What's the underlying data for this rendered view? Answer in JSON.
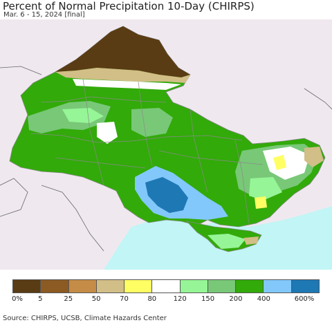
{
  "title": "Percent of Normal Precipitation 10-Day (CHIRPS)",
  "subtitle": "Mar. 6 - 15, 2024 [final]",
  "source": "Source: CHIRPS, UCSB, Climate Hazards Center",
  "legend": {
    "colors": [
      "#5a3c14",
      "#8c5a23",
      "#c48c46",
      "#d2be87",
      "#ffff64",
      "#ffffff",
      "#96f596",
      "#78c878",
      "#32aa0a",
      "#82c8fa",
      "#1e78b4"
    ],
    "labels": [
      "0%",
      "5",
      "25",
      "50",
      "70",
      "80",
      "120",
      "150",
      "200",
      "400",
      "600%"
    ]
  },
  "map_colors": {
    "land_outside": "#efe9ef",
    "sea": "#c2f5f5",
    "very_dry": "#5a3c14",
    "green": "#32aa0a",
    "light_green": "#78c878",
    "pale_green": "#96f596",
    "light_blue": "#82c8fa",
    "blue": "#1e78b4",
    "near_normal": "#ffffff",
    "dry_yellow": "#ffff64",
    "tan": "#d2be87"
  }
}
